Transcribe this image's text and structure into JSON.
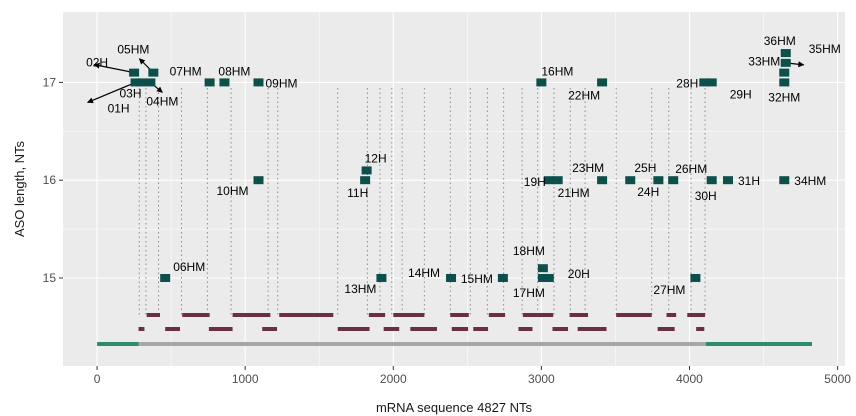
{
  "chart_data": {
    "type": "scatter",
    "xlabel": "mRNA sequence 4827 NTs",
    "ylabel": "ASO length, NTs",
    "xlim": [
      -230,
      5050
    ],
    "ylim": [
      14.1,
      17.72
    ],
    "x_ticks": [
      0,
      1000,
      2000,
      3000,
      4000,
      5000
    ],
    "y_ticks": [
      15,
      16,
      17
    ],
    "grid": true,
    "colors": {
      "panel": "#ebebeb",
      "gridline": "#ffffff",
      "point": "#0d4f4a",
      "bracket": "#6b2f45",
      "utr": "#2e8b6e",
      "cds": "#a6a6a6",
      "guide": "#8c8c8c"
    },
    "points": [
      {
        "label": "01H",
        "x": 260,
        "y": 17.0
      },
      {
        "label": "02H",
        "x": 250,
        "y": 17.1
      },
      {
        "label": "03H",
        "x": 300,
        "y": 17.0
      },
      {
        "label": "04HM",
        "x": 360,
        "y": 17.0
      },
      {
        "label": "05HM",
        "x": 380,
        "y": 17.1
      },
      {
        "label": "06HM",
        "x": 460,
        "y": 15.0
      },
      {
        "label": "07HM",
        "x": 760,
        "y": 17.0
      },
      {
        "label": "08HM",
        "x": 860,
        "y": 17.0
      },
      {
        "label": "09HM",
        "x": 1090,
        "y": 17.0
      },
      {
        "label": "10HM",
        "x": 1090,
        "y": 16.0
      },
      {
        "label": "11H",
        "x": 1810,
        "y": 16.0
      },
      {
        "label": "12H",
        "x": 1820,
        "y": 16.1
      },
      {
        "label": "13HM",
        "x": 1920,
        "y": 15.0
      },
      {
        "label": "14HM",
        "x": 2390,
        "y": 15.0
      },
      {
        "label": "15HM",
        "x": 2740,
        "y": 15.0
      },
      {
        "label": "16HM",
        "x": 3000,
        "y": 17.0
      },
      {
        "label": "17HM",
        "x": 3010,
        "y": 15.0
      },
      {
        "label": "18HM",
        "x": 3010,
        "y": 15.1
      },
      {
        "label": "19H",
        "x": 3050,
        "y": 16.0
      },
      {
        "label": "20H",
        "x": 3050,
        "y": 15.0
      },
      {
        "label": "21HM",
        "x": 3110,
        "y": 16.0
      },
      {
        "label": "22HM",
        "x": 3410,
        "y": 17.0
      },
      {
        "label": "23HM",
        "x": 3410,
        "y": 16.0
      },
      {
        "label": "24H",
        "x": 3600,
        "y": 16.0
      },
      {
        "label": "25H",
        "x": 3790,
        "y": 16.0
      },
      {
        "label": "26HM",
        "x": 3890,
        "y": 16.0
      },
      {
        "label": "27HM",
        "x": 4040,
        "y": 15.0
      },
      {
        "label": "28H",
        "x": 4100,
        "y": 17.0
      },
      {
        "label": "29H",
        "x": 4150,
        "y": 17.0
      },
      {
        "label": "30H",
        "x": 4150,
        "y": 16.0
      },
      {
        "label": "31H",
        "x": 4260,
        "y": 16.0
      },
      {
        "label": "32HM",
        "x": 4640,
        "y": 17.0
      },
      {
        "label": "33HM",
        "x": 4640,
        "y": 17.1
      },
      {
        "label": "34HM",
        "x": 4640,
        "y": 16.0
      },
      {
        "label": "35HM",
        "x": 4650,
        "y": 17.2
      },
      {
        "label": "36HM",
        "x": 4650,
        "y": 17.3
      }
    ],
    "guide_lines_x": [
      285,
      330,
      415,
      570,
      745,
      905,
      1155,
      1220,
      1625,
      1825,
      1910,
      1990,
      2060,
      2210,
      2385,
      2520,
      2635,
      2745,
      2870,
      2975,
      3085,
      3195,
      3295,
      3505,
      3745,
      3860,
      4010,
      4105
    ],
    "brackets_upper": [
      [
        335,
        425
      ],
      [
        575,
        760
      ],
      [
        915,
        1170
      ],
      [
        1230,
        1595
      ],
      [
        1835,
        1945
      ],
      [
        2000,
        2210
      ],
      [
        2385,
        2510
      ],
      [
        2645,
        2755
      ],
      [
        2875,
        3080
      ],
      [
        3190,
        3315
      ],
      [
        3505,
        3745
      ],
      [
        3845,
        3910
      ],
      [
        3985,
        4105
      ]
    ],
    "brackets_lower": [
      [
        280,
        320
      ],
      [
        460,
        560
      ],
      [
        755,
        915
      ],
      [
        1115,
        1215
      ],
      [
        1625,
        1840
      ],
      [
        1935,
        2040
      ],
      [
        2115,
        2295
      ],
      [
        2395,
        2505
      ],
      [
        2540,
        2640
      ],
      [
        2845,
        2940
      ],
      [
        3075,
        3180
      ],
      [
        3245,
        3440
      ],
      [
        3785,
        3900
      ],
      [
        4045,
        4100
      ]
    ],
    "transcript_segments": [
      {
        "region": "utr",
        "start": 0,
        "end": 280
      },
      {
        "region": "cds",
        "start": 280,
        "end": 4110
      },
      {
        "region": "utr",
        "start": 4110,
        "end": 4827
      }
    ]
  }
}
